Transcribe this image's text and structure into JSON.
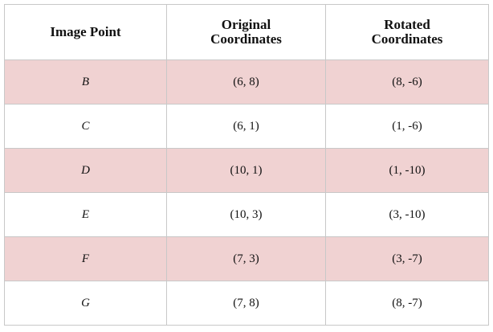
{
  "table": {
    "header": [
      "Image Point",
      "Original Coordinates",
      "Rotated Coordinates"
    ],
    "rows": [
      [
        "B",
        "(6, 8)",
        "(8, -6)"
      ],
      [
        "C",
        "(6, 1)",
        "(1, -6)"
      ],
      [
        "D",
        "(10, 1)",
        "(1, -10)"
      ],
      [
        "E",
        "(10, 3)",
        "(3, -10)"
      ],
      [
        "F",
        "(7, 3)",
        "(3, -7)"
      ],
      [
        "G",
        "(7, 8)",
        "(8, -7)"
      ]
    ]
  }
}
